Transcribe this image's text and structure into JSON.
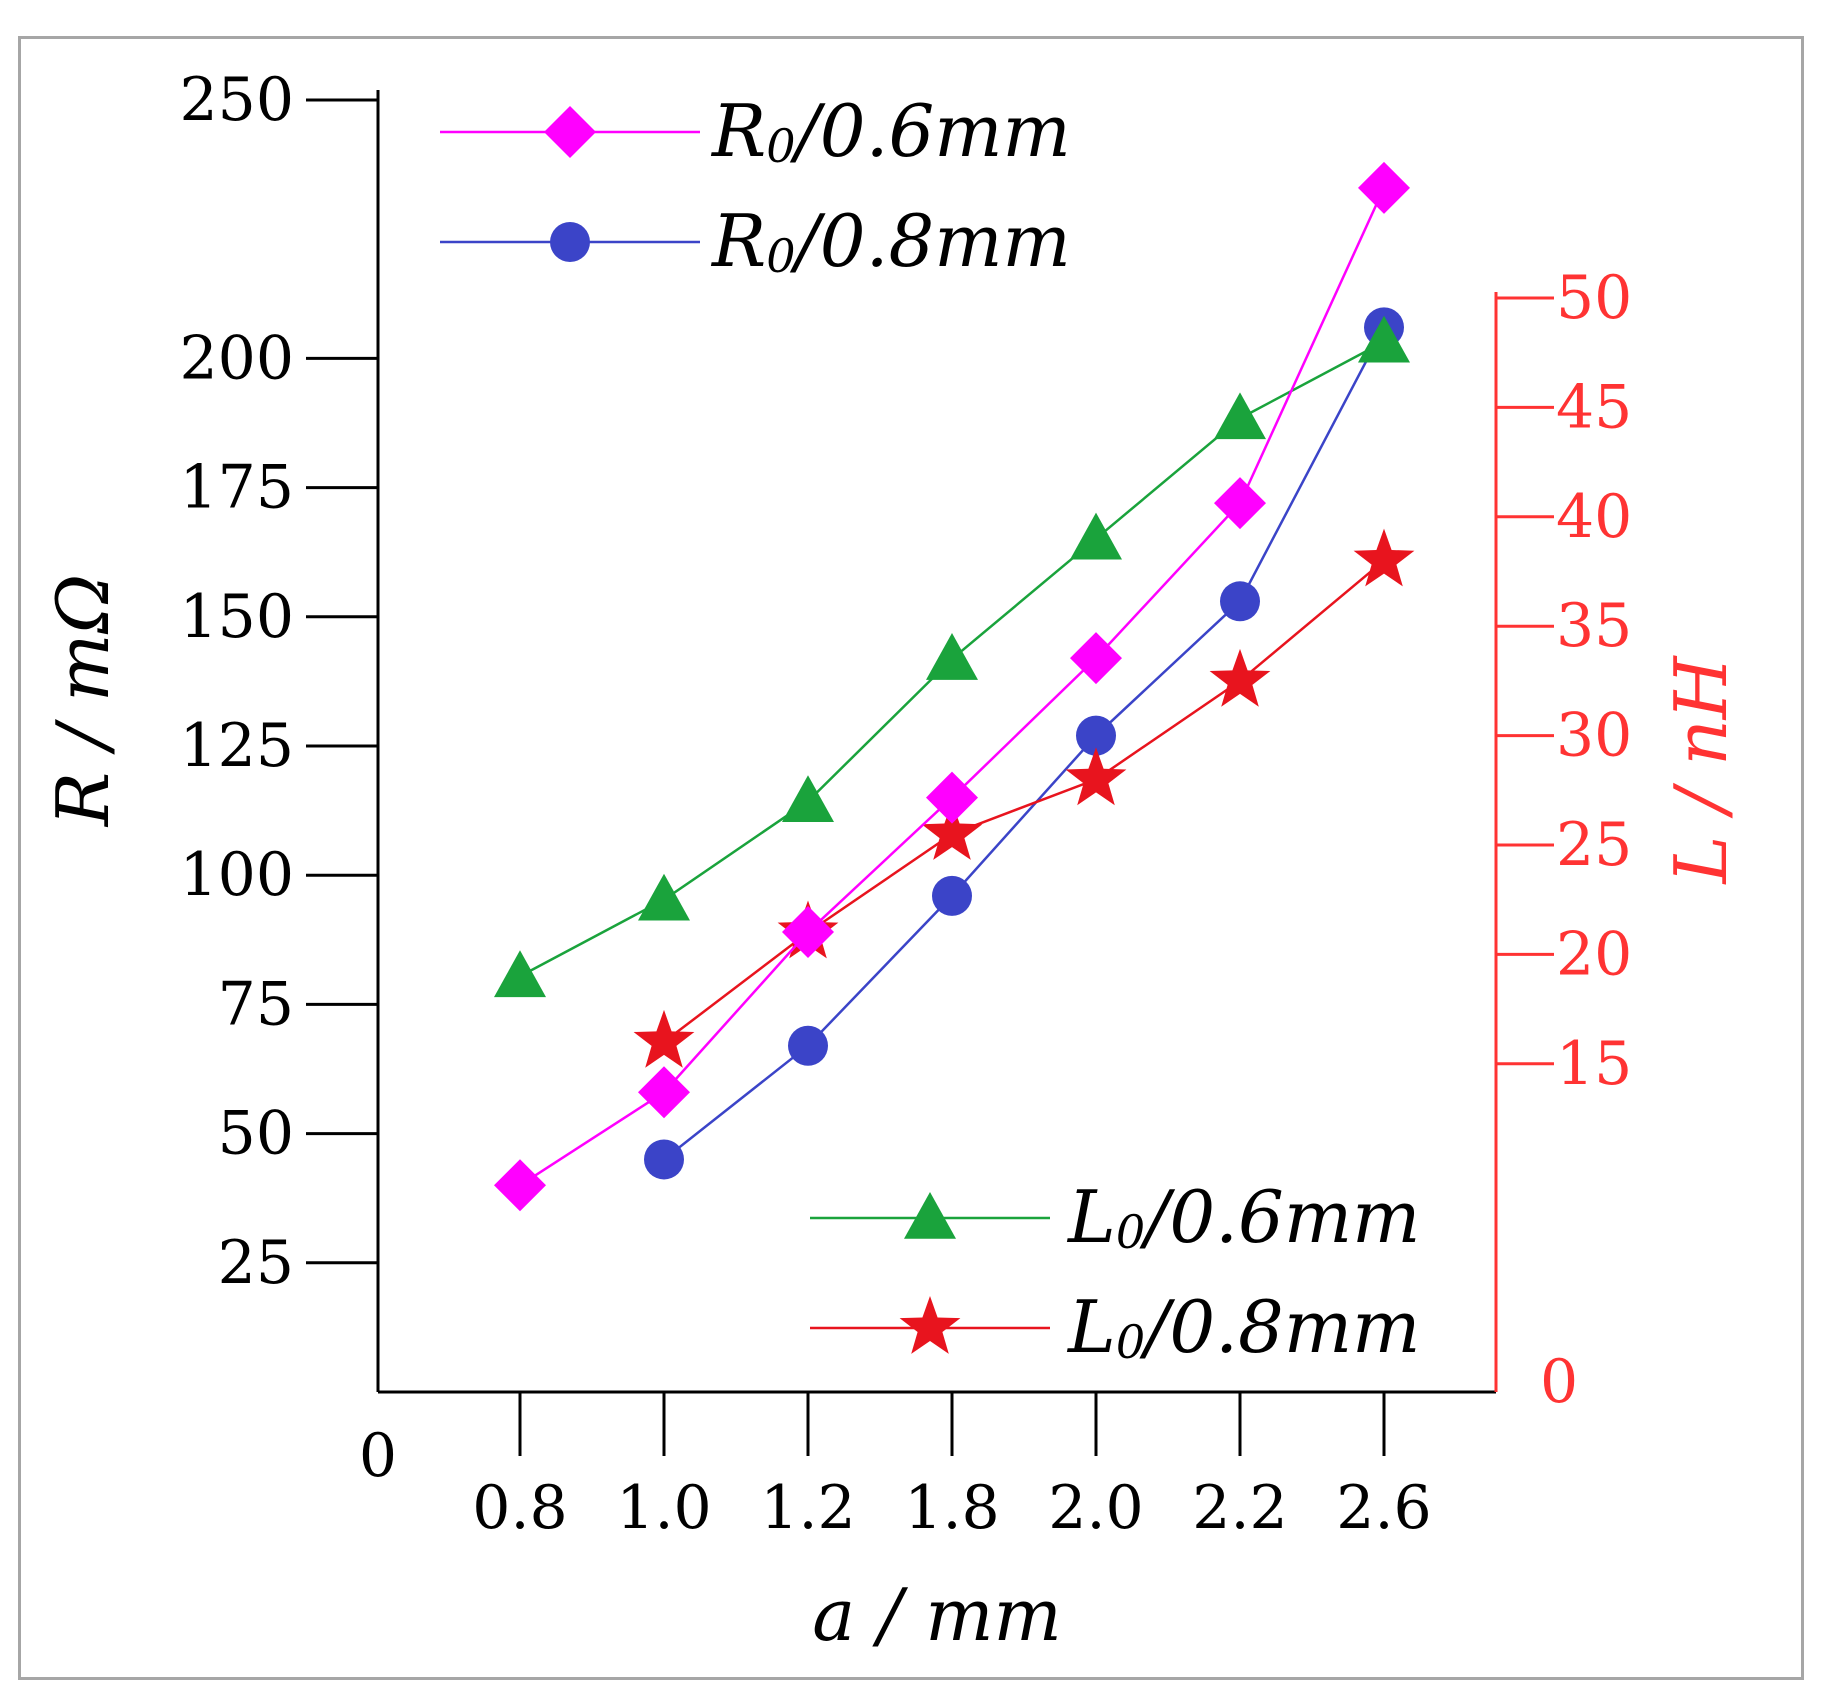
{
  "chart_data": {
    "type": "line",
    "categories": [
      "0.8",
      "1.0",
      "1.2",
      "1.8",
      "2.0",
      "2.2",
      "2.6"
    ],
    "xlabel": "a / mm",
    "ylabel": "R / mΩ",
    "y2label": "L / nH",
    "x_origin_label": "0",
    "y2_origin_label": "0",
    "ylim": [
      0,
      250
    ],
    "yticks": [
      25,
      50,
      75,
      100,
      125,
      150,
      175,
      200,
      250
    ],
    "y2lim": [
      0,
      50
    ],
    "y2ticks": [
      15,
      20,
      25,
      30,
      35,
      40,
      45,
      50
    ],
    "grid": false,
    "series": [
      {
        "name": "R0/0.6mm",
        "axis": "left",
        "color": "#ff00ff",
        "marker": "diamond",
        "values": [
          40,
          58,
          89,
          115,
          142,
          172,
          233
        ]
      },
      {
        "name": "R0/0.8mm",
        "axis": "left",
        "color": "#3b44c8",
        "marker": "circle",
        "values": [
          null,
          45,
          67,
          96,
          127,
          153,
          206
        ]
      },
      {
        "name": "L0/0.6mm",
        "axis": "right",
        "color": "#1aa33c",
        "marker": "triangle",
        "values": [
          19,
          22.5,
          27,
          33.5,
          39,
          44.5,
          48
        ]
      },
      {
        "name": "L0/0.8mm",
        "axis": "right",
        "color": "#e8141e",
        "marker": "star",
        "values": [
          null,
          16,
          21,
          25.5,
          28,
          32.5,
          38
        ]
      }
    ],
    "legend": [
      {
        "series": "R0/0.6mm",
        "prefix": "R",
        "sub": "0",
        "suffix": "/0.6mm",
        "position": "top-left"
      },
      {
        "series": "R0/0.8mm",
        "prefix": "R",
        "sub": "0",
        "suffix": "/0.8mm",
        "position": "top-left"
      },
      {
        "series": "L0/0.6mm",
        "prefix": "L",
        "sub": "0",
        "suffix": "/0.6mm",
        "position": "bottom-right"
      },
      {
        "series": "L0/0.8mm",
        "prefix": "L",
        "sub": "0",
        "suffix": "/0.8mm",
        "position": "bottom-right"
      }
    ],
    "colors": {
      "left_axis": "#000000",
      "right_axis": "#ff3333"
    }
  }
}
